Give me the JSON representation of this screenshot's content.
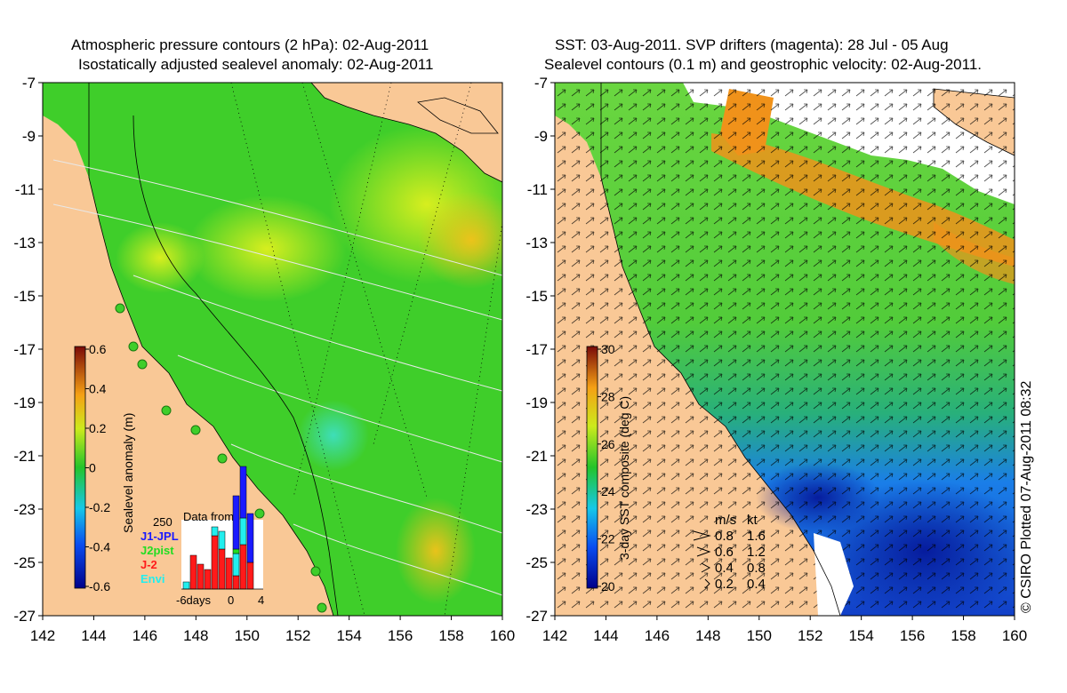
{
  "left_panel": {
    "title_line1": "Atmospheric pressure contours (2 hPa): 02-Aug-2011",
    "title_line2": "Isostatically adjusted sealevel anomaly: 02-Aug-2011",
    "x_ticks": [
      "142",
      "144",
      "146",
      "148",
      "150",
      "152",
      "154",
      "156",
      "158",
      "160"
    ],
    "y_ticks": [
      "-7",
      "-9",
      "-11",
      "-13",
      "-15",
      "-17",
      "-19",
      "-21",
      "-23",
      "-25",
      "-27"
    ],
    "colorbar": {
      "label": "Sealevel anomaly (m)",
      "ticks": [
        "0.6",
        "0.4",
        "0.2",
        "0",
        "-0.2",
        "-0.4",
        "-0.6"
      ]
    },
    "inset": {
      "title": "Data from",
      "ymax": "250",
      "legend": [
        {
          "name": "J1-JPL",
          "color": "#1a1aff"
        },
        {
          "name": "J2pist",
          "color": "#22dd22"
        },
        {
          "name": "J-2",
          "color": "#ff1a1a"
        },
        {
          "name": "Envi",
          "color": "#22eeee"
        }
      ],
      "x_labels": [
        "-6days",
        "0",
        "4"
      ]
    }
  },
  "right_panel": {
    "title_line1": "SST: 03-Aug-2011. SVP drifters (magenta): 28 Jul - 05 Aug",
    "title_line2": "Sealevel contours (0.1 m) and geostrophic velocity: 02-Aug-2011.",
    "x_ticks": [
      "142",
      "144",
      "146",
      "148",
      "150",
      "152",
      "154",
      "156",
      "158",
      "160"
    ],
    "y_ticks": [
      "-7",
      "-9",
      "-11",
      "-13",
      "-15",
      "-17",
      "-19",
      "-21",
      "-23",
      "-25",
      "-27"
    ],
    "colorbar": {
      "label": "3-day SST composite (deg C)",
      "ticks": [
        "30",
        "28",
        "26",
        "24",
        "22",
        "20"
      ]
    },
    "velocity_legend": {
      "header_ms": "m/s",
      "header_kt": "kt",
      "rows": [
        {
          "ms": "0.8",
          "kt": "1.6"
        },
        {
          "ms": "0.6",
          "kt": "1.2"
        },
        {
          "ms": "0.4",
          "kt": "0.8"
        },
        {
          "ms": "0.2",
          "kt": "0.4"
        }
      ]
    }
  },
  "credit": "© CSIRO Plotted 07-Aug-2011 08:32",
  "colors": {
    "land": "#f9c896",
    "sla_green": "#3fce2a",
    "sst_green": "#5cd23a",
    "sst_blue": "#1b5de0",
    "sst_orange": "#f0921a"
  }
}
